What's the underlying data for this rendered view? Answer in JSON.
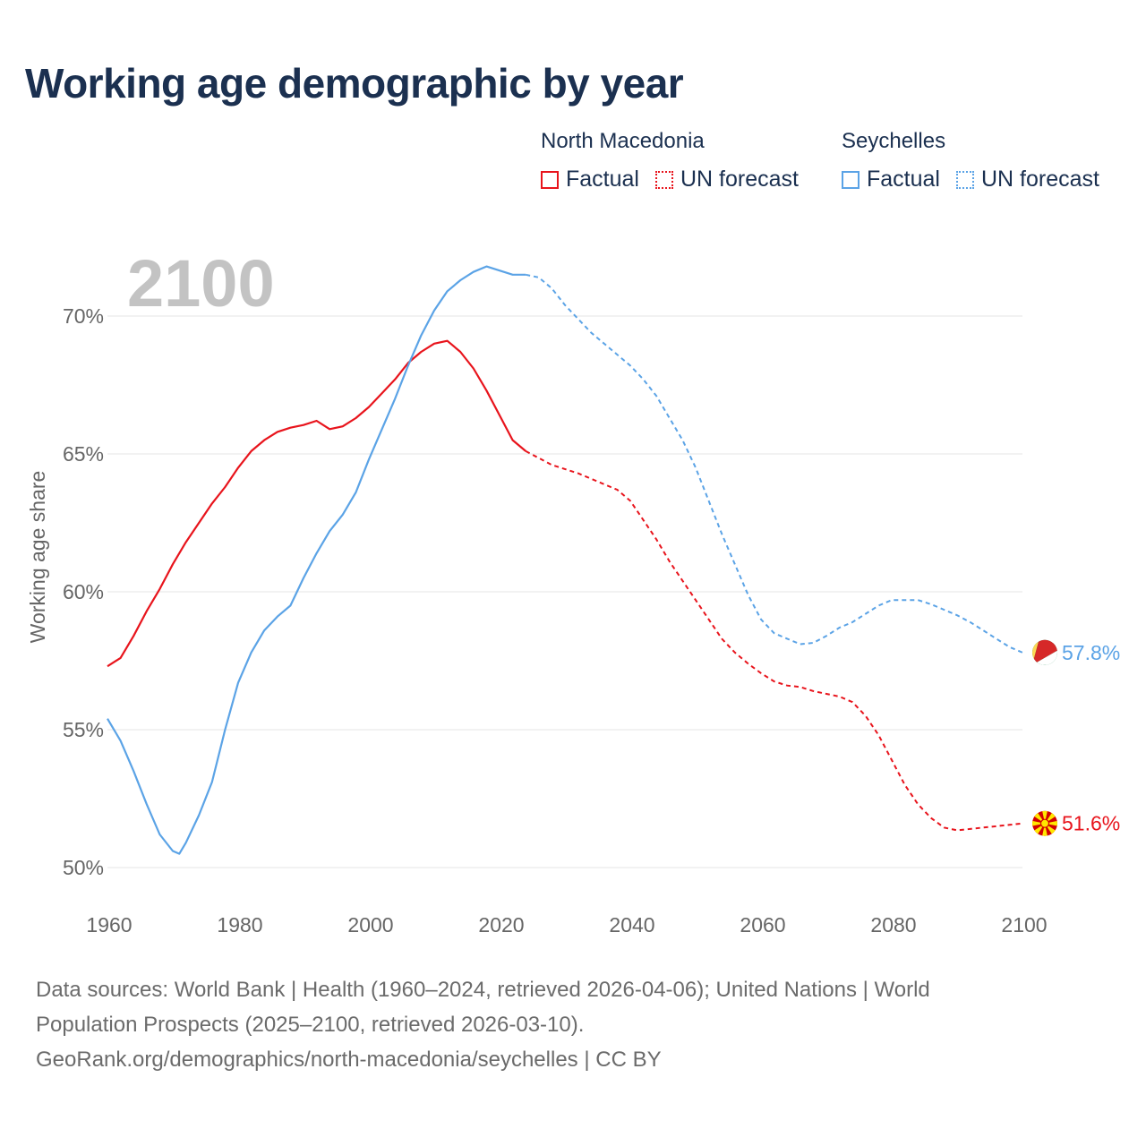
{
  "title": "Working age demographic by year",
  "year_label": "2100",
  "legend": {
    "groups": [
      {
        "country": "North Macedonia",
        "color": "#e8141c",
        "factual": "Factual",
        "forecast": "UN forecast"
      },
      {
        "country": "Seychelles",
        "color": "#5ba3e6",
        "factual": "Factual",
        "forecast": "UN forecast"
      }
    ]
  },
  "footer": {
    "line1": "Data sources: World Bank | Health (1960–2024, retrieved 2026-04-06); United Nations | World",
    "line2": "Population Prospects (2025–2100, retrieved 2026-03-10).",
    "line3": "GeoRank.org/demographics/north-macedonia/seychelles | CC BY"
  },
  "chart_data": {
    "type": "line",
    "title": "Working age demographic by year",
    "xlabel": "",
    "ylabel": "Working age share",
    "xlim": [
      1960,
      2100
    ],
    "ylim": [
      50,
      71.5
    ],
    "x_ticks": [
      1960,
      1980,
      2000,
      2020,
      2040,
      2060,
      2080,
      2100
    ],
    "x_tick_labels": [
      "1960",
      "1980",
      "2000",
      "2020",
      "2040",
      "2060",
      "2080",
      "2100"
    ],
    "y_ticks": [
      50,
      55,
      60,
      65,
      70
    ],
    "y_tick_labels": [
      "50%",
      "55%",
      "60%",
      "65%",
      "70%"
    ],
    "forecast_start": 2024,
    "series": [
      {
        "name": "North Macedonia",
        "color": "#e8141c",
        "end_label": "51.6%",
        "points": [
          [
            1960,
            57.3
          ],
          [
            1962,
            57.6
          ],
          [
            1964,
            58.4
          ],
          [
            1966,
            59.3
          ],
          [
            1968,
            60.1
          ],
          [
            1970,
            61.0
          ],
          [
            1972,
            61.8
          ],
          [
            1974,
            62.5
          ],
          [
            1976,
            63.2
          ],
          [
            1978,
            63.8
          ],
          [
            1980,
            64.5
          ],
          [
            1982,
            65.1
          ],
          [
            1984,
            65.5
          ],
          [
            1986,
            65.8
          ],
          [
            1988,
            65.95
          ],
          [
            1990,
            66.05
          ],
          [
            1992,
            66.2
          ],
          [
            1994,
            65.9
          ],
          [
            1996,
            66.0
          ],
          [
            1998,
            66.3
          ],
          [
            2000,
            66.7
          ],
          [
            2002,
            67.2
          ],
          [
            2004,
            67.7
          ],
          [
            2006,
            68.3
          ],
          [
            2008,
            68.7
          ],
          [
            2010,
            69.0
          ],
          [
            2012,
            69.1
          ],
          [
            2014,
            68.7
          ],
          [
            2016,
            68.1
          ],
          [
            2018,
            67.3
          ],
          [
            2020,
            66.4
          ],
          [
            2022,
            65.5
          ],
          [
            2024,
            65.1
          ],
          [
            2026,
            64.85
          ],
          [
            2028,
            64.6
          ],
          [
            2030,
            64.45
          ],
          [
            2032,
            64.3
          ],
          [
            2034,
            64.1
          ],
          [
            2036,
            63.9
          ],
          [
            2038,
            63.7
          ],
          [
            2040,
            63.3
          ],
          [
            2042,
            62.6
          ],
          [
            2044,
            61.9
          ],
          [
            2046,
            61.1
          ],
          [
            2048,
            60.4
          ],
          [
            2050,
            59.7
          ],
          [
            2052,
            59.0
          ],
          [
            2054,
            58.3
          ],
          [
            2056,
            57.8
          ],
          [
            2058,
            57.4
          ],
          [
            2060,
            57.05
          ],
          [
            2062,
            56.75
          ],
          [
            2064,
            56.6
          ],
          [
            2066,
            56.55
          ],
          [
            2068,
            56.4
          ],
          [
            2070,
            56.3
          ],
          [
            2072,
            56.2
          ],
          [
            2074,
            56.0
          ],
          [
            2076,
            55.5
          ],
          [
            2078,
            54.8
          ],
          [
            2080,
            53.9
          ],
          [
            2082,
            53.0
          ],
          [
            2084,
            52.3
          ],
          [
            2086,
            51.8
          ],
          [
            2088,
            51.45
          ],
          [
            2090,
            51.35
          ],
          [
            2092,
            51.4
          ],
          [
            2094,
            51.45
          ],
          [
            2096,
            51.5
          ],
          [
            2098,
            51.55
          ],
          [
            2100,
            51.6
          ]
        ]
      },
      {
        "name": "Seychelles",
        "color": "#5ba3e6",
        "end_label": "57.8%",
        "points": [
          [
            1960,
            55.4
          ],
          [
            1962,
            54.6
          ],
          [
            1964,
            53.5
          ],
          [
            1966,
            52.3
          ],
          [
            1968,
            51.2
          ],
          [
            1970,
            50.6
          ],
          [
            1971,
            50.5
          ],
          [
            1972,
            50.9
          ],
          [
            1974,
            51.9
          ],
          [
            1976,
            53.1
          ],
          [
            1978,
            55.0
          ],
          [
            1980,
            56.7
          ],
          [
            1982,
            57.8
          ],
          [
            1984,
            58.6
          ],
          [
            1986,
            59.1
          ],
          [
            1988,
            59.5
          ],
          [
            1990,
            60.5
          ],
          [
            1992,
            61.4
          ],
          [
            1994,
            62.2
          ],
          [
            1996,
            62.8
          ],
          [
            1998,
            63.6
          ],
          [
            2000,
            64.8
          ],
          [
            2002,
            65.9
          ],
          [
            2004,
            67.0
          ],
          [
            2006,
            68.2
          ],
          [
            2008,
            69.3
          ],
          [
            2010,
            70.2
          ],
          [
            2012,
            70.9
          ],
          [
            2014,
            71.3
          ],
          [
            2016,
            71.6
          ],
          [
            2018,
            71.8
          ],
          [
            2020,
            71.65
          ],
          [
            2022,
            71.5
          ],
          [
            2024,
            71.5
          ],
          [
            2026,
            71.4
          ],
          [
            2028,
            71.0
          ],
          [
            2030,
            70.4
          ],
          [
            2032,
            69.9
          ],
          [
            2034,
            69.4
          ],
          [
            2036,
            69.0
          ],
          [
            2038,
            68.6
          ],
          [
            2040,
            68.2
          ],
          [
            2042,
            67.7
          ],
          [
            2044,
            67.1
          ],
          [
            2046,
            66.3
          ],
          [
            2048,
            65.5
          ],
          [
            2050,
            64.5
          ],
          [
            2052,
            63.3
          ],
          [
            2054,
            62.1
          ],
          [
            2056,
            61.0
          ],
          [
            2058,
            59.9
          ],
          [
            2060,
            59.0
          ],
          [
            2062,
            58.5
          ],
          [
            2064,
            58.3
          ],
          [
            2066,
            58.1
          ],
          [
            2068,
            58.15
          ],
          [
            2070,
            58.4
          ],
          [
            2072,
            58.7
          ],
          [
            2074,
            58.9
          ],
          [
            2076,
            59.2
          ],
          [
            2078,
            59.5
          ],
          [
            2080,
            59.7
          ],
          [
            2082,
            59.7
          ],
          [
            2084,
            59.7
          ],
          [
            2086,
            59.55
          ],
          [
            2088,
            59.35
          ],
          [
            2090,
            59.15
          ],
          [
            2092,
            58.9
          ],
          [
            2094,
            58.6
          ],
          [
            2096,
            58.3
          ],
          [
            2098,
            58.0
          ],
          [
            2100,
            57.8
          ]
        ]
      }
    ]
  }
}
